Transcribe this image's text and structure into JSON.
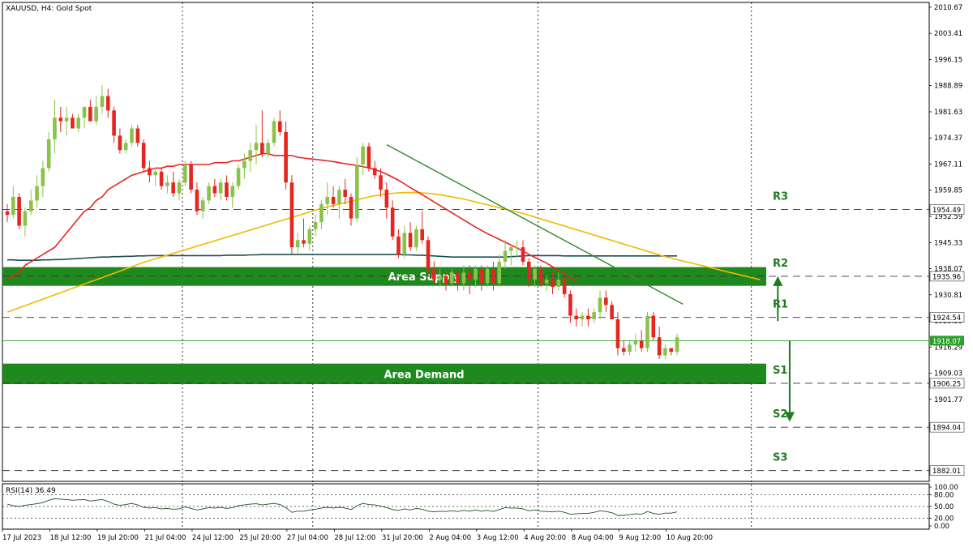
{
  "header": {
    "text": "XAUUSD, H4:  Gold Spot"
  },
  "rsi_header": {
    "text": "RSI(14) 36.49"
  },
  "colors": {
    "bull": "#8bc34a",
    "bear": "#e52620",
    "ma_red": "#e52620",
    "ma_orange": "#f5b800",
    "ma_dark": "#1f4f4f",
    "trendline": "#2e8b2e",
    "zone": "#1e8a1e",
    "level_text": "#1e7a1e",
    "current_price": "#2ca02c",
    "arrow": "#1e7a1e"
  },
  "zones": {
    "supply": {
      "label": "Area Supply",
      "top": 1938.5,
      "bottom": 1933.3
    },
    "demand": {
      "label": "Area Demand",
      "top": 1911.7,
      "bottom": 1906.0
    }
  },
  "levels": [
    {
      "name": "R3",
      "price": 1954.49,
      "price_label": "1954.49"
    },
    {
      "name": "R2",
      "price": 1935.96,
      "price_label": "1935.96"
    },
    {
      "name": "R1",
      "price": 1924.54,
      "price_label": "1924.54"
    },
    {
      "name": "S1",
      "price": 1906.25,
      "price_label": "1906.25"
    },
    {
      "name": "S2",
      "price": 1894.04,
      "price_label": "1894.04"
    },
    {
      "name": "S3",
      "price": 1882.01,
      "price_label": "1882.01"
    }
  ],
  "current_price": {
    "value": 1918.07,
    "label": "1918.07"
  },
  "price_axis": {
    "min": 1879,
    "max": 2012,
    "ticks": [
      "2010.67",
      "2003.41",
      "1996.15",
      "1988.89",
      "1981.63",
      "1974.37",
      "1967.11",
      "1959.85",
      "1952.59",
      "1945.33",
      "1938.07",
      "1930.81",
      "1923.55",
      "1916.29",
      "1909.03",
      "1901.77",
      "1894.51"
    ],
    "tick_values": [
      2010.67,
      2003.41,
      1996.15,
      1988.89,
      1981.63,
      1974.37,
      1967.11,
      1959.85,
      1952.59,
      1945.33,
      1938.07,
      1930.81,
      1923.55,
      1916.29,
      1909.03,
      1901.77,
      1894.51
    ]
  },
  "rsi_axis": {
    "ticks": [
      "100.00",
      "80.00",
      "50.00",
      "20.00",
      "0.00"
    ],
    "tick_values": [
      100,
      80,
      50,
      20,
      0
    ],
    "levels": [
      80,
      50,
      20
    ]
  },
  "time_axis": {
    "labels": [
      "17 Jul 2023",
      "18 Jul 12:00",
      "19 Jul 20:00",
      "21 Jul 04:00",
      "24 Jul 12:00",
      "25 Jul 20:00",
      "27 Jul 04:00",
      "28 Jul 12:00",
      "31 Jul 20:00",
      "2 Aug 04:00",
      "3 Aug 12:00",
      "4 Aug 20:00",
      "8 Aug 04:00",
      "9 Aug 12:00",
      "10 Aug 20:00"
    ],
    "label_bars": [
      0,
      8,
      16,
      24,
      32,
      40,
      48,
      56,
      64,
      72,
      80,
      88,
      96,
      104,
      112
    ]
  },
  "vertical_gridlines_at_bars": [
    29,
    51,
    89,
    125
  ],
  "chart_data": {
    "type": "candlestick",
    "symbol": "XAUUSD",
    "timeframe": "H4",
    "title": "XAUUSD, H4:  Gold Spot",
    "candles": [
      [
        1954,
        1956,
        1951,
        1953
      ],
      [
        1953,
        1961,
        1952,
        1958
      ],
      [
        1958,
        1959,
        1949,
        1950
      ],
      [
        1950,
        1955,
        1947,
        1954
      ],
      [
        1954,
        1960,
        1953,
        1957
      ],
      [
        1957,
        1964,
        1955,
        1961
      ],
      [
        1961,
        1968,
        1958,
        1966
      ],
      [
        1966,
        1976,
        1965,
        1974
      ],
      [
        1974,
        1985,
        1970,
        1980
      ],
      [
        1980,
        1983,
        1976,
        1979
      ],
      [
        1979,
        1983,
        1975,
        1980
      ],
      [
        1980,
        1981,
        1977,
        1977
      ],
      [
        1977,
        1981,
        1976,
        1980
      ],
      [
        1980,
        1983,
        1977,
        1983
      ],
      [
        1983,
        1985,
        1979,
        1979
      ],
      [
        1979,
        1986,
        1978,
        1983
      ],
      [
        1983,
        1989,
        1981,
        1986
      ],
      [
        1986,
        1988,
        1980,
        1982
      ],
      [
        1982,
        1983,
        1973,
        1975
      ],
      [
        1975,
        1977,
        1970,
        1971
      ],
      [
        1971,
        1974,
        1970,
        1973
      ],
      [
        1973,
        1978,
        1972,
        1977
      ],
      [
        1977,
        1978,
        1972,
        1973
      ],
      [
        1973,
        1974,
        1965,
        1966
      ],
      [
        1966,
        1968,
        1962,
        1964
      ],
      [
        1964,
        1966,
        1961,
        1965
      ],
      [
        1965,
        1966,
        1960,
        1961
      ],
      [
        1961,
        1964,
        1959,
        1962
      ],
      [
        1962,
        1965,
        1958,
        1959
      ],
      [
        1959,
        1963,
        1957,
        1962
      ],
      [
        1962,
        1968,
        1961,
        1967
      ],
      [
        1967,
        1968,
        1959,
        1960
      ],
      [
        1960,
        1962,
        1953,
        1954
      ],
      [
        1954,
        1958,
        1952,
        1957
      ],
      [
        1957,
        1962,
        1956,
        1961
      ],
      [
        1961,
        1963,
        1958,
        1959
      ],
      [
        1959,
        1963,
        1957,
        1962
      ],
      [
        1962,
        1964,
        1957,
        1958
      ],
      [
        1958,
        1962,
        1955,
        1961
      ],
      [
        1961,
        1967,
        1960,
        1966
      ],
      [
        1966,
        1970,
        1963,
        1968
      ],
      [
        1968,
        1973,
        1965,
        1971
      ],
      [
        1971,
        1978,
        1967,
        1973
      ],
      [
        1973,
        1982,
        1969,
        1970
      ],
      [
        1970,
        1974,
        1969,
        1973
      ],
      [
        1973,
        1980,
        1972,
        1979
      ],
      [
        1979,
        1982,
        1975,
        1976
      ],
      [
        1976,
        1979,
        1960,
        1962
      ],
      [
        1962,
        1964,
        1942,
        1944
      ],
      [
        1944,
        1948,
        1942,
        1946
      ],
      [
        1946,
        1952,
        1944,
        1945
      ],
      [
        1945,
        1950,
        1943,
        1949
      ],
      [
        1949,
        1953,
        1947,
        1951
      ],
      [
        1951,
        1957,
        1949,
        1956
      ],
      [
        1956,
        1962,
        1953,
        1958
      ],
      [
        1958,
        1961,
        1955,
        1956
      ],
      [
        1956,
        1961,
        1952,
        1960
      ],
      [
        1960,
        1963,
        1956,
        1958
      ],
      [
        1958,
        1959,
        1950,
        1952
      ],
      [
        1952,
        1969,
        1951,
        1967
      ],
      [
        1967,
        1973,
        1964,
        1972
      ],
      [
        1972,
        1973,
        1965,
        1966
      ],
      [
        1966,
        1968,
        1963,
        1964
      ],
      [
        1964,
        1966,
        1958,
        1960
      ],
      [
        1960,
        1962,
        1952,
        1955
      ],
      [
        1955,
        1957,
        1946,
        1947
      ],
      [
        1947,
        1949,
        1941,
        1942
      ],
      [
        1942,
        1950,
        1941,
        1948
      ],
      [
        1948,
        1951,
        1943,
        1944
      ],
      [
        1944,
        1950,
        1943,
        1949
      ],
      [
        1949,
        1954,
        1945,
        1946
      ],
      [
        1946,
        1947,
        1936,
        1938
      ],
      [
        1938,
        1940,
        1934,
        1935
      ],
      [
        1935,
        1938,
        1933,
        1936
      ],
      [
        1936,
        1937,
        1932,
        1934
      ],
      [
        1934,
        1938,
        1933,
        1937
      ],
      [
        1937,
        1938,
        1932,
        1934
      ],
      [
        1934,
        1939,
        1932,
        1937
      ],
      [
        1937,
        1939,
        1931,
        1935
      ],
      [
        1935,
        1939,
        1933,
        1938
      ],
      [
        1938,
        1939,
        1932,
        1934
      ],
      [
        1934,
        1939,
        1933,
        1938
      ],
      [
        1938,
        1940,
        1932,
        1934
      ],
      [
        1934,
        1942,
        1933,
        1940
      ],
      [
        1940,
        1946,
        1938,
        1943
      ],
      [
        1943,
        1945,
        1939,
        1944
      ],
      [
        1944,
        1946,
        1941,
        1944
      ],
      [
        1944,
        1946,
        1939,
        1940
      ],
      [
        1940,
        1941,
        1933,
        1935
      ],
      [
        1935,
        1939,
        1933,
        1938
      ],
      [
        1938,
        1939,
        1933,
        1934
      ],
      [
        1934,
        1936,
        1932,
        1935
      ],
      [
        1935,
        1937,
        1931,
        1933
      ],
      [
        1933,
        1937,
        1932,
        1935
      ],
      [
        1935,
        1936,
        1930,
        1931
      ],
      [
        1931,
        1932,
        1923,
        1925
      ],
      [
        1925,
        1927,
        1922,
        1924
      ],
      [
        1924,
        1926,
        1922,
        1925
      ],
      [
        1925,
        1927,
        1922,
        1924
      ],
      [
        1924,
        1927,
        1923,
        1926
      ],
      [
        1926,
        1932,
        1924,
        1930
      ],
      [
        1930,
        1932,
        1926,
        1928
      ],
      [
        1928,
        1929,
        1924,
        1924
      ],
      [
        1924,
        1926,
        1914,
        1916
      ],
      [
        1916,
        1918,
        1914,
        1915
      ],
      [
        1915,
        1918,
        1914,
        1917
      ],
      [
        1917,
        1920,
        1915,
        1918
      ],
      [
        1918,
        1921,
        1915,
        1916
      ],
      [
        1916,
        1926,
        1915,
        1925
      ],
      [
        1925,
        1926,
        1918,
        1919
      ],
      [
        1919,
        1922,
        1913,
        1914
      ],
      [
        1914,
        1917,
        1913,
        1916
      ],
      [
        1916,
        1916,
        1914,
        1915
      ],
      [
        1915,
        1920,
        1914,
        1919
      ]
    ],
    "ma_red": [
      1935,
      1936,
      1937,
      1939,
      1940,
      1941,
      1942,
      1943,
      1944,
      1946,
      1948,
      1950,
      1952,
      1954,
      1955,
      1957,
      1958,
      1960,
      1961,
      1962,
      1963,
      1964,
      1964.5,
      1965,
      1965.5,
      1966,
      1966,
      1966.5,
      1966.5,
      1967,
      1967,
      1967,
      1967,
      1967,
      1967,
      1967.5,
      1967.5,
      1967.5,
      1968,
      1968,
      1968.5,
      1969,
      1969.5,
      1970,
      1970,
      1969.5,
      1969.5,
      1969.5,
      1969.5,
      1969,
      1968.8,
      1968.6,
      1968.4,
      1968.2,
      1968,
      1967.8,
      1967.5,
      1967.2,
      1967,
      1966.7,
      1966.4,
      1966,
      1965.6,
      1965,
      1964.3,
      1963.5,
      1962.6,
      1961.6,
      1960.6,
      1959.6,
      1958.6,
      1957.6,
      1956.6,
      1955.6,
      1954.6,
      1953.6,
      1952.6,
      1951.6,
      1950.6,
      1949.6,
      1948.7,
      1947.8,
      1947,
      1946.2,
      1945.4,
      1944.6,
      1943.8,
      1943,
      1942,
      1941.2,
      1940.4,
      1939.6,
      1938.6,
      1937.6,
      1936.6,
      1935.6,
      1934.6
    ],
    "ma_orange": [
      1926,
      1926.6,
      1927.2,
      1927.8,
      1928.4,
      1929,
      1929.6,
      1930.2,
      1930.8,
      1931.4,
      1932,
      1932.6,
      1933.2,
      1933.8,
      1934.4,
      1935,
      1935.6,
      1936.2,
      1936.8,
      1937.4,
      1938,
      1938.6,
      1939.2,
      1939.8,
      1940.3,
      1940.8,
      1941.3,
      1941.8,
      1942.3,
      1942.8,
      1943.3,
      1943.8,
      1944.3,
      1944.8,
      1945.3,
      1945.8,
      1946.3,
      1946.8,
      1947.3,
      1947.8,
      1948.3,
      1948.8,
      1949.3,
      1949.8,
      1950.3,
      1950.8,
      1951.3,
      1951.8,
      1952.3,
      1952.8,
      1953.3,
      1953.8,
      1954.3,
      1954.8,
      1955.2,
      1955.6,
      1956,
      1956.4,
      1956.8,
      1957.2,
      1957.6,
      1958,
      1958.3,
      1958.6,
      1958.8,
      1959,
      1959.1,
      1959.2,
      1959.2,
      1959.2,
      1959.1,
      1959,
      1958.8,
      1958.6,
      1958.3,
      1958,
      1957.7,
      1957.4,
      1957,
      1956.6,
      1956.2,
      1955.8,
      1955.4,
      1955,
      1954.6,
      1954.2,
      1953.8,
      1953.4,
      1952.9,
      1952.4,
      1951.9,
      1951.4,
      1950.9,
      1950.4,
      1949.9,
      1949.4,
      1948.9,
      1948.4,
      1947.9,
      1947.4,
      1946.9,
      1946.4,
      1945.9,
      1945.4,
      1944.9,
      1944.4,
      1943.9,
      1943.4,
      1942.9,
      1942.4,
      1941.9,
      1941.4,
      1941,
      1940.6,
      1940.2,
      1939.8,
      1939.4,
      1939,
      1938.6,
      1938.2,
      1937.8,
      1937.4,
      1937,
      1936.6,
      1936.2,
      1935.8,
      1935.4,
      1935
    ],
    "ma_dark": [
      1940.5,
      1940.5,
      1940.4,
      1940.4,
      1940.4,
      1940.4,
      1940.5,
      1940.5,
      1940.6,
      1940.6,
      1940.7,
      1940.8,
      1940.9,
      1941,
      1941.1,
      1941.2,
      1941.3,
      1941.3,
      1941.4,
      1941.4,
      1941.5,
      1941.5,
      1941.6,
      1941.6,
      1941.7,
      1941.7,
      1941.7,
      1941.7,
      1941.7,
      1941.7,
      1941.7,
      1941.7,
      1941.7,
      1941.7,
      1941.7,
      1941.7,
      1941.7,
      1941.8,
      1941.8,
      1941.8,
      1941.8,
      1941.9,
      1941.9,
      1942,
      1942,
      1942,
      1942,
      1942,
      1942,
      1942,
      1942,
      1942,
      1942,
      1942,
      1942,
      1942,
      1942,
      1942,
      1942,
      1942,
      1942,
      1942,
      1942,
      1942,
      1942,
      1942,
      1942,
      1941.9,
      1941.9,
      1941.8,
      1941.8,
      1941.7,
      1941.6,
      1941.5,
      1941.4,
      1941.3,
      1941.3,
      1941.3,
      1941.3,
      1941.3,
      1941.3,
      1941.3,
      1941.3,
      1941.3,
      1941.3,
      1941.4,
      1941.5,
      1941.6,
      1941.7,
      1941.7,
      1941.7,
      1941.7,
      1941.7,
      1941.7,
      1941.6,
      1941.6,
      1941.6,
      1941.6,
      1941.6,
      1941.6,
      1941.6,
      1941.6,
      1941.6,
      1941.6,
      1941.6,
      1941.6,
      1941.6,
      1941.6,
      1941.6,
      1941.6,
      1941.6,
      1941.6,
      1941.6,
      1941.6
    ],
    "trendline": {
      "from_bar": 64,
      "from_price": 1972.5,
      "to_bar": 114,
      "to_price": 1928.2
    },
    "arrows": [
      {
        "direction": "up",
        "x_bar": 130,
        "from_price": 1923.5,
        "to_price": 1935.5
      },
      {
        "direction": "down",
        "x_bar": 132,
        "from_price": 1918.0,
        "to_price": 1896.0
      }
    ],
    "rsi_values": [
      56,
      52,
      50,
      53,
      55,
      57,
      60,
      66,
      70,
      69,
      68,
      66,
      67,
      68,
      64,
      66,
      68,
      63,
      56,
      53,
      55,
      58,
      54,
      48,
      46,
      47,
      44,
      45,
      43,
      44,
      49,
      45,
      41,
      44,
      47,
      46,
      48,
      45,
      47,
      52,
      54,
      56,
      57,
      54,
      56,
      58,
      55,
      47,
      35,
      38,
      38,
      41,
      43,
      46,
      48,
      46,
      48,
      46,
      42,
      52,
      58,
      55,
      54,
      51,
      47,
      42,
      40,
      44,
      41,
      45,
      43,
      38,
      36,
      38,
      37,
      39,
      37,
      40,
      38,
      41,
      38,
      40,
      37,
      42,
      47,
      46,
      46,
      44,
      39,
      41,
      38,
      37,
      36,
      38,
      35,
      30,
      31,
      32,
      32,
      35,
      39,
      37,
      34,
      27,
      27,
      29,
      31,
      30,
      37,
      32,
      30,
      33,
      33,
      36
    ],
    "ylim": [
      1879,
      2012
    ],
    "rsi_ylim": [
      0,
      100
    ]
  }
}
